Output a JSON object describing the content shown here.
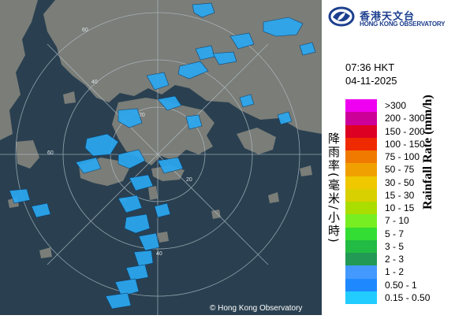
{
  "brand": {
    "name_zh": "香港天文台",
    "name_en": "HONG KONG OBSERVATORY",
    "logo_icon": "hko-swirl-logo-icon",
    "color": "#1d3f8f"
  },
  "observation": {
    "time": "07:36 HKT",
    "date": "04-11-2025"
  },
  "legend": {
    "title_zh": "降雨率(毫米/小時)",
    "title_en": "Rainfall Rate (mm/h)",
    "items": [
      {
        "label": ">300",
        "color": "#f000f0"
      },
      {
        "label": "200 - 300",
        "color": "#cc0099"
      },
      {
        "label": "150 - 200",
        "color": "#dd0022"
      },
      {
        "label": "100 - 150",
        "color": "#f02a00"
      },
      {
        "label": "75 - 100",
        "color": "#f07a00"
      },
      {
        "label": "50 - 75",
        "color": "#f0a000"
      },
      {
        "label": "30 - 50",
        "color": "#f0c800"
      },
      {
        "label": "15 - 30",
        "color": "#d8d000"
      },
      {
        "label": "10 - 15",
        "color": "#aadd00"
      },
      {
        "label": "7 - 10",
        "color": "#77ee22"
      },
      {
        "label": "5 - 7",
        "color": "#33dd33"
      },
      {
        "label": "3 - 5",
        "color": "#22bb44"
      },
      {
        "label": "2 - 3",
        "color": "#229955"
      },
      {
        "label": "1 - 2",
        "color": "#4499ff"
      },
      {
        "label": "0.50 - 1",
        "color": "#1e88ff"
      },
      {
        "label": "0.15 - 0.50",
        "color": "#22ccff"
      }
    ]
  },
  "map": {
    "sea_color": "#2a4050",
    "land_color": "#7a7d78",
    "range_ring_labels": [
      "60",
      "60",
      "40",
      "40",
      "20",
      "20",
      "20"
    ],
    "copyright": "© Hong Kong Observatory"
  }
}
